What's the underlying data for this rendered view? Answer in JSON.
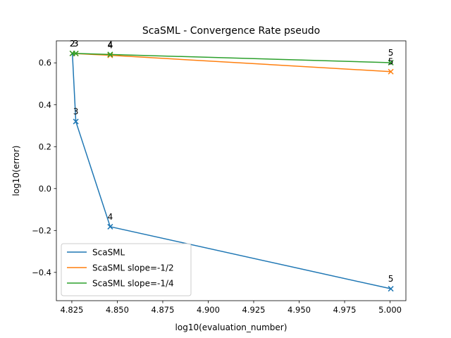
{
  "chart_data": {
    "type": "line",
    "title": "ScaSML - Convergence Rate pseudo",
    "xlabel": "log10(evaluation_number)",
    "ylabel": "log10(error)",
    "xlim": [
      4.8165,
      5.0087
    ],
    "ylim": [
      -0.535,
      0.705
    ],
    "xticks": [
      4.825,
      4.85,
      4.875,
      4.9,
      4.925,
      4.95,
      4.975,
      5.0
    ],
    "xtick_labels": [
      "4.825",
      "4.850",
      "4.875",
      "4.900",
      "4.925",
      "4.950",
      "4.975",
      "5.000"
    ],
    "yticks": [
      -0.4,
      -0.2,
      0.0,
      0.2,
      0.4,
      0.6
    ],
    "ytick_labels": [
      "−0.4",
      "−0.2",
      "0.0",
      "0.2",
      "0.4",
      "0.6"
    ],
    "grid": false,
    "legend_position": "lower-left",
    "marker": "x",
    "series": [
      {
        "name": "ScaSML",
        "color": "#1f77b4",
        "x": [
          4.8253,
          4.8272,
          4.8461,
          5.0004
        ],
        "y": [
          0.645,
          0.32,
          -0.182,
          -0.478
        ],
        "point_labels": [
          "2",
          "3",
          "4",
          "5"
        ]
      },
      {
        "name": "ScaSML slope=-1/2",
        "color": "#ff7f0e",
        "x": [
          4.8253,
          4.8272,
          4.8461,
          5.0004
        ],
        "y": [
          0.645,
          0.644,
          0.636,
          0.558
        ],
        "point_labels": [
          "2",
          "3",
          "4",
          "5"
        ]
      },
      {
        "name": "ScaSML slope=-1/4",
        "color": "#2ca02c",
        "x": [
          4.8253,
          4.8272,
          4.8461,
          5.0004
        ],
        "y": [
          0.645,
          0.645,
          0.64,
          0.601
        ],
        "point_labels": [
          "2",
          "3",
          "4",
          "5"
        ]
      }
    ]
  }
}
